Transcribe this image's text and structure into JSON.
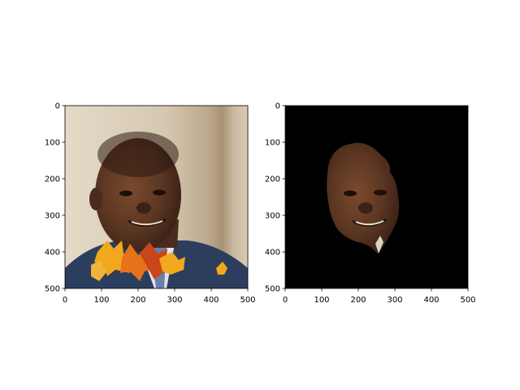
{
  "colors": {
    "background": "#ffffff",
    "axis": "#000000",
    "mask_background": "#000000",
    "wall_light": "#ddd2bf",
    "wall_mid": "#cbbca4",
    "pillar": "#b8a68c",
    "suit": "#2c3e5e",
    "shirt": "#dfe3ee",
    "skin_dark": "#4a2c1c",
    "skin_mid": "#6b4129",
    "skin_light": "#8a5638",
    "leaf_yellow": "#f2a81d",
    "leaf_orange": "#e8721a",
    "leaf_red": "#c9461a"
  },
  "chart_data": [
    {
      "type": "image",
      "content": "photo of a man in a suit with autumn leaf overlay",
      "xlim": [
        0,
        500
      ],
      "ylim": [
        500,
        0
      ],
      "x_ticks": [
        "0",
        "100",
        "200",
        "300",
        "400",
        "500"
      ],
      "y_ticks": [
        "0",
        "100",
        "200",
        "300",
        "400",
        "500"
      ],
      "grid": false
    },
    {
      "type": "image",
      "content": "segmented face on black background",
      "xlim": [
        0,
        500
      ],
      "ylim": [
        500,
        0
      ],
      "x_ticks": [
        "0",
        "100",
        "200",
        "300",
        "400",
        "500"
      ],
      "y_ticks": [
        "0",
        "100",
        "200",
        "300",
        "400",
        "500"
      ],
      "grid": false
    }
  ]
}
